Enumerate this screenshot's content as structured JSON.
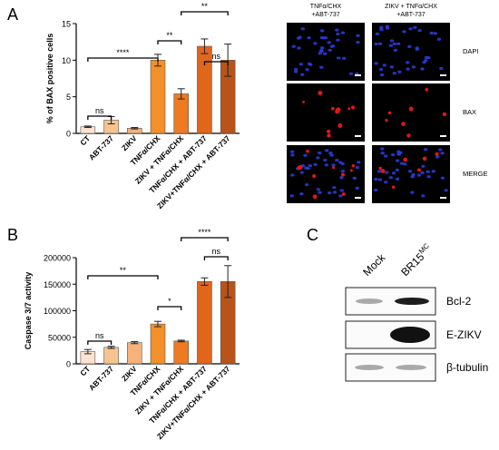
{
  "panel_letters": [
    "A",
    "B",
    "C"
  ],
  "colors": {
    "CT": "#fde3cf",
    "ABT-737": "#f7c48f",
    "ZIKV": "#f6b27a",
    "TNFa/CHX": "#f39029",
    "ZIKV + TNFa/CHX": "#ee7a22",
    "TNFa/CHX + ABT-737": "#e0661c",
    "ZIKV+TNFa/CHX + ABT-737": "#b8541a",
    "dapi": "#2a3bd6",
    "bax": "#e01818"
  },
  "chart_data": [
    {
      "type": "bar",
      "panel": "A",
      "categories": [
        "CT",
        "ABT-737",
        "ZIKV",
        "TNFα/CHX",
        "ZIKV + TNFα/CHX",
        "TNFα/CHX + ABT-737",
        "ZIKV+TNFα/CHX + ABT-737"
      ],
      "values": [
        0.9,
        1.8,
        0.7,
        10.0,
        5.4,
        11.9,
        10.0
      ],
      "errors": [
        0.1,
        0.5,
        0.1,
        0.8,
        0.7,
        1.0,
        2.2
      ],
      "ylabel": "% of BAX positive cells",
      "ylim": [
        0,
        15
      ],
      "yticks": [
        0,
        5,
        10,
        15
      ],
      "significance": [
        {
          "from": 0,
          "to": 1,
          "label": "ns"
        },
        {
          "from": 0,
          "to": 3,
          "label": "****"
        },
        {
          "from": 3,
          "to": 4,
          "label": "**"
        },
        {
          "from": 4,
          "to": 6,
          "label": "**"
        },
        {
          "from": 5,
          "to": 6,
          "label": "ns"
        }
      ]
    },
    {
      "type": "bar",
      "panel": "B",
      "categories": [
        "CT",
        "ABT-737",
        "ZIKV",
        "TNFα/CHX",
        "ZIKV + TNFα/CHX",
        "TNFα/CHX + ABT-737",
        "ZIKV+TNFα/CHX + ABT-737"
      ],
      "values": [
        23000,
        31000,
        40000,
        75000,
        43000,
        155000,
        155000
      ],
      "errors": [
        4000,
        2000,
        2000,
        5000,
        1500,
        7000,
        30000
      ],
      "ylabel": "Caspase 3/7 activity",
      "ylim": [
        0,
        200000
      ],
      "yticks": [
        0,
        50000,
        100000,
        150000,
        200000
      ],
      "significance": [
        {
          "from": 0,
          "to": 1,
          "label": "ns"
        },
        {
          "from": 0,
          "to": 3,
          "label": "**"
        },
        {
          "from": 3,
          "to": 4,
          "label": "*"
        },
        {
          "from": 4,
          "to": 6,
          "label": "****"
        },
        {
          "from": 5,
          "to": 6,
          "label": "ns"
        }
      ]
    }
  ],
  "microscopy": {
    "columns": [
      "TNFα/CHX\n+ABT-737",
      "ZIKV + TNFα/CHX\n+ABT-737"
    ],
    "rows": [
      "DAPI",
      "BAX",
      "MERGE"
    ]
  },
  "western": {
    "lanes": [
      "Mock",
      "BR15"
    ],
    "lane_superscript": "MC",
    "proteins": [
      "Bcl-2",
      "E-ZIKV",
      "β-tubulin"
    ]
  }
}
